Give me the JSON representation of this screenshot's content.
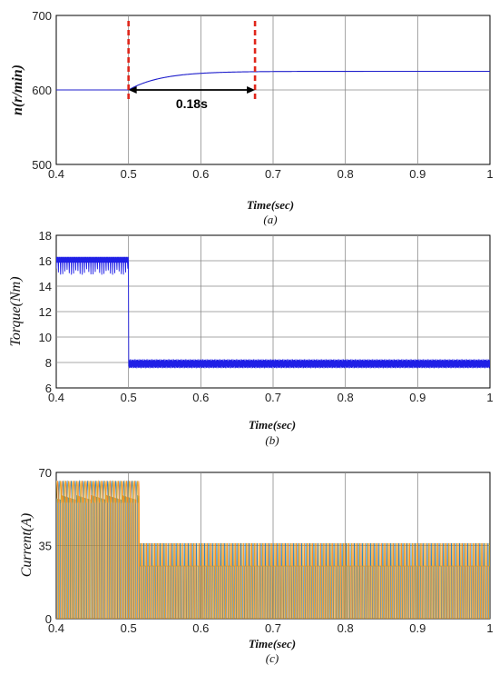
{
  "chart_data": [
    {
      "type": "line",
      "ylabel": "n(r/min)",
      "xlabel": "Time(sec)",
      "caption": "(a)",
      "xlim": [
        0.4,
        1.0
      ],
      "ylim": [
        500,
        700
      ],
      "xticks": [
        "0.4",
        "0.5",
        "0.6",
        "0.7",
        "0.8",
        "0.9",
        "1"
      ],
      "yticks": [
        "500",
        "600",
        "700"
      ],
      "grid": true,
      "series_color": "#1f1fcc",
      "marker_color": "#e0261b",
      "annotation": {
        "text": "0.18s",
        "from_x": 0.5,
        "to_x": 0.675,
        "y": 600
      },
      "markers_x": [
        0.5,
        0.675
      ],
      "step": {
        "x0": 0.5,
        "y_before": 600,
        "y_after": 625,
        "time_constant": 0.045
      }
    },
    {
      "type": "line",
      "ylabel": "Torque(Nm)",
      "xlabel": "Time(sec)",
      "caption": "(b)",
      "xlim": [
        0.4,
        1.0
      ],
      "ylim": [
        6,
        18
      ],
      "xticks": [
        "0.4",
        "0.5",
        "0.6",
        "0.7",
        "0.8",
        "0.9",
        "1"
      ],
      "yticks": [
        "6",
        "8",
        "10",
        "12",
        "14",
        "16",
        "18"
      ],
      "grid": true,
      "series_color": "#1f1fe6",
      "step": {
        "x0": 0.5,
        "y_before": 16.1,
        "y_after": 7.9,
        "ripple_before_up": 0.2,
        "ripple_before_down": 1.2,
        "ripple_after": 0.35
      }
    },
    {
      "type": "line",
      "ylabel": "Current(A)",
      "xlabel": "Time(sec)",
      "caption": "(c)",
      "xlim": [
        0.4,
        1.0
      ],
      "ylim": [
        0,
        70
      ],
      "xticks": [
        "0.4",
        "0.5",
        "0.6",
        "0.7",
        "0.8",
        "0.9",
        "1"
      ],
      "yticks": [
        "0",
        "35",
        "70"
      ],
      "grid": true,
      "series_colors": [
        "#1f77b4",
        "#ff7f0e",
        "#d4a017"
      ],
      "step": {
        "x0": 0.515,
        "amp_before": 66,
        "amp_after": 36,
        "valley_after": 24
      }
    }
  ]
}
